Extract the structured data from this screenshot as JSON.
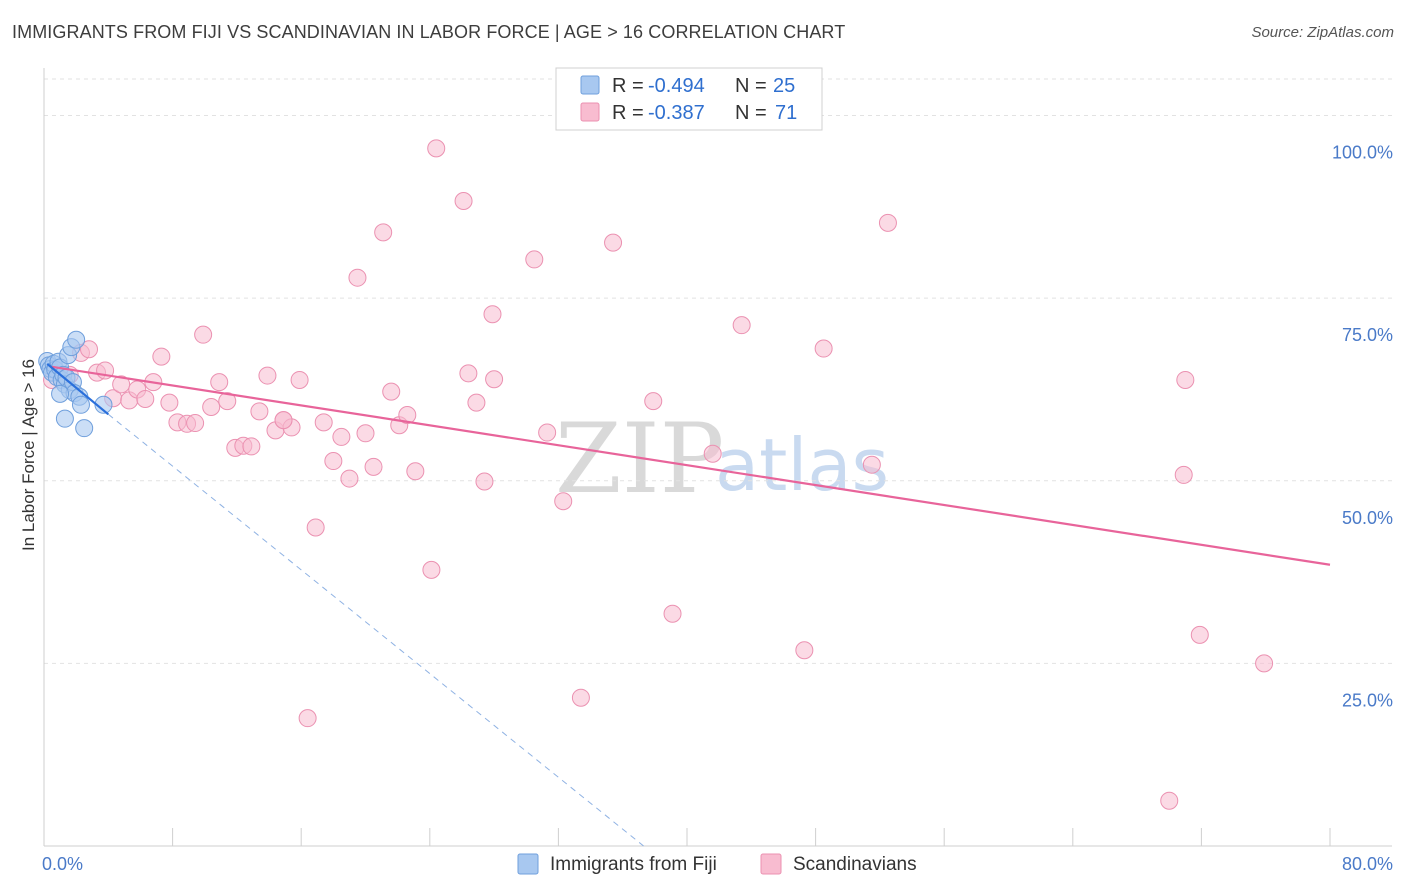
{
  "header": {
    "title": "IMMIGRANTS FROM FIJI VS SCANDINAVIAN IN LABOR FORCE | AGE > 16 CORRELATION CHART",
    "source": "Source: ZipAtlas.com"
  },
  "watermark": {
    "zip": "ZIP",
    "atlas": "atlas"
  },
  "legend": {
    "r_label": "R =",
    "n_label": "N =",
    "entries": [
      {
        "r": "-0.494",
        "n": "25",
        "color": "#a8c8f0"
      },
      {
        "r": "-0.387",
        "n": "71",
        "color": "#f8bcd0"
      }
    ]
  },
  "bottom_legend": [
    {
      "label": "Immigrants from Fiji",
      "color": "#a8c8f0"
    },
    {
      "label": "Scandinavians",
      "color": "#f8bcd0"
    }
  ],
  "colors": {
    "fiji_fill": "#a8c8f0",
    "fiji_stroke": "#6f9fdc",
    "fiji_line": "#2a6fdb",
    "scan_fill": "#f8bcd0",
    "scan_stroke": "#eb91b1",
    "scan_line": "#e8649a",
    "axis_text": "#4a7ac8"
  },
  "chart_data": {
    "type": "scatter",
    "title": "IMMIGRANTS FROM FIJI VS SCANDINAVIAN IN LABOR FORCE | AGE > 16 CORRELATION CHART",
    "xlabel": "",
    "ylabel": "In Labor Force | Age > 16",
    "xlim": [
      0,
      80
    ],
    "ylim": [
      0,
      105
    ],
    "x_tick_labels": [
      "0.0%",
      "80.0%"
    ],
    "y_ticks": [
      25,
      50,
      75,
      100
    ],
    "y_tick_labels": [
      "25.0%",
      "50.0%",
      "75.0%",
      "100.0%"
    ],
    "grid": true,
    "series": [
      {
        "name": "Immigrants from Fiji",
        "points": [
          [
            0.2,
            66.4
          ],
          [
            0.3,
            65.8
          ],
          [
            0.4,
            65.3
          ],
          [
            0.5,
            64.8
          ],
          [
            0.6,
            66.0
          ],
          [
            0.7,
            65.2
          ],
          [
            0.8,
            64.2
          ],
          [
            0.9,
            66.3
          ],
          [
            1.0,
            65.5
          ],
          [
            1.1,
            63.8
          ],
          [
            1.2,
            64.5
          ],
          [
            1.3,
            63.2
          ],
          [
            1.4,
            64.1
          ],
          [
            1.5,
            67.2
          ],
          [
            1.6,
            62.4
          ],
          [
            1.7,
            68.3
          ],
          [
            1.8,
            63.5
          ],
          [
            1.9,
            62.0
          ],
          [
            2.0,
            69.3
          ],
          [
            2.2,
            61.5
          ],
          [
            2.3,
            60.4
          ],
          [
            2.5,
            57.2
          ],
          [
            1.3,
            58.5
          ],
          [
            1.0,
            61.9
          ],
          [
            3.7,
            60.4
          ]
        ],
        "trend": {
          "x0": 0.2,
          "y0": 66.0,
          "x1": 4.0,
          "y1": 59.1
        },
        "trend_ext": {
          "x0": 4.0,
          "y0": 59.1,
          "x1": 37.3,
          "y1": 0
        }
      },
      {
        "name": "Scandinavians",
        "points": [
          [
            0.5,
            63.8
          ],
          [
            1.6,
            64.5
          ],
          [
            2.3,
            67.5
          ],
          [
            2.8,
            68.0
          ],
          [
            3.3,
            64.8
          ],
          [
            3.8,
            65.1
          ],
          [
            4.3,
            61.3
          ],
          [
            4.8,
            63.2
          ],
          [
            5.3,
            61.0
          ],
          [
            5.8,
            62.5
          ],
          [
            6.3,
            61.2
          ],
          [
            6.8,
            63.5
          ],
          [
            7.3,
            67.0
          ],
          [
            7.8,
            60.7
          ],
          [
            8.3,
            58.0
          ],
          [
            8.9,
            57.8
          ],
          [
            9.4,
            57.9
          ],
          [
            9.9,
            70.0
          ],
          [
            10.4,
            60.1
          ],
          [
            10.9,
            63.5
          ],
          [
            11.4,
            60.9
          ],
          [
            11.9,
            54.5
          ],
          [
            12.4,
            54.8
          ],
          [
            12.9,
            54.7
          ],
          [
            13.4,
            59.5
          ],
          [
            13.9,
            64.4
          ],
          [
            14.4,
            56.9
          ],
          [
            14.9,
            58.3
          ],
          [
            15.4,
            57.3
          ],
          [
            15.9,
            63.8
          ],
          [
            16.4,
            17.5
          ],
          [
            16.9,
            43.6
          ],
          [
            17.4,
            58.0
          ],
          [
            18.0,
            52.7
          ],
          [
            18.5,
            56.0
          ],
          [
            19.0,
            50.3
          ],
          [
            19.5,
            77.8
          ],
          [
            20.0,
            56.5
          ],
          [
            20.5,
            51.9
          ],
          [
            21.1,
            84.0
          ],
          [
            21.6,
            62.2
          ],
          [
            22.1,
            57.6
          ],
          [
            22.6,
            59.0
          ],
          [
            23.1,
            51.3
          ],
          [
            24.1,
            37.8
          ],
          [
            24.4,
            95.5
          ],
          [
            26.1,
            88.3
          ],
          [
            26.4,
            64.7
          ],
          [
            26.9,
            60.7
          ],
          [
            27.4,
            49.9
          ],
          [
            27.9,
            72.8
          ],
          [
            28.0,
            63.9
          ],
          [
            30.5,
            80.3
          ],
          [
            31.3,
            56.6
          ],
          [
            32.3,
            47.2
          ],
          [
            33.4,
            20.3
          ],
          [
            35.4,
            82.6
          ],
          [
            37.9,
            60.9
          ],
          [
            39.1,
            31.8
          ],
          [
            41.6,
            53.7
          ],
          [
            43.4,
            71.3
          ],
          [
            47.3,
            26.8
          ],
          [
            48.5,
            68.1
          ],
          [
            51.5,
            52.2
          ],
          [
            52.5,
            85.3
          ],
          [
            70.0,
            6.2
          ],
          [
            70.9,
            50.8
          ],
          [
            71.0,
            63.8
          ],
          [
            71.9,
            28.9
          ],
          [
            75.9,
            25.0
          ],
          [
            14.9,
            58.3
          ]
        ],
        "trend": {
          "x0": 0.5,
          "y0": 65.6,
          "x1": 80.0,
          "y1": 38.5
        }
      }
    ]
  }
}
